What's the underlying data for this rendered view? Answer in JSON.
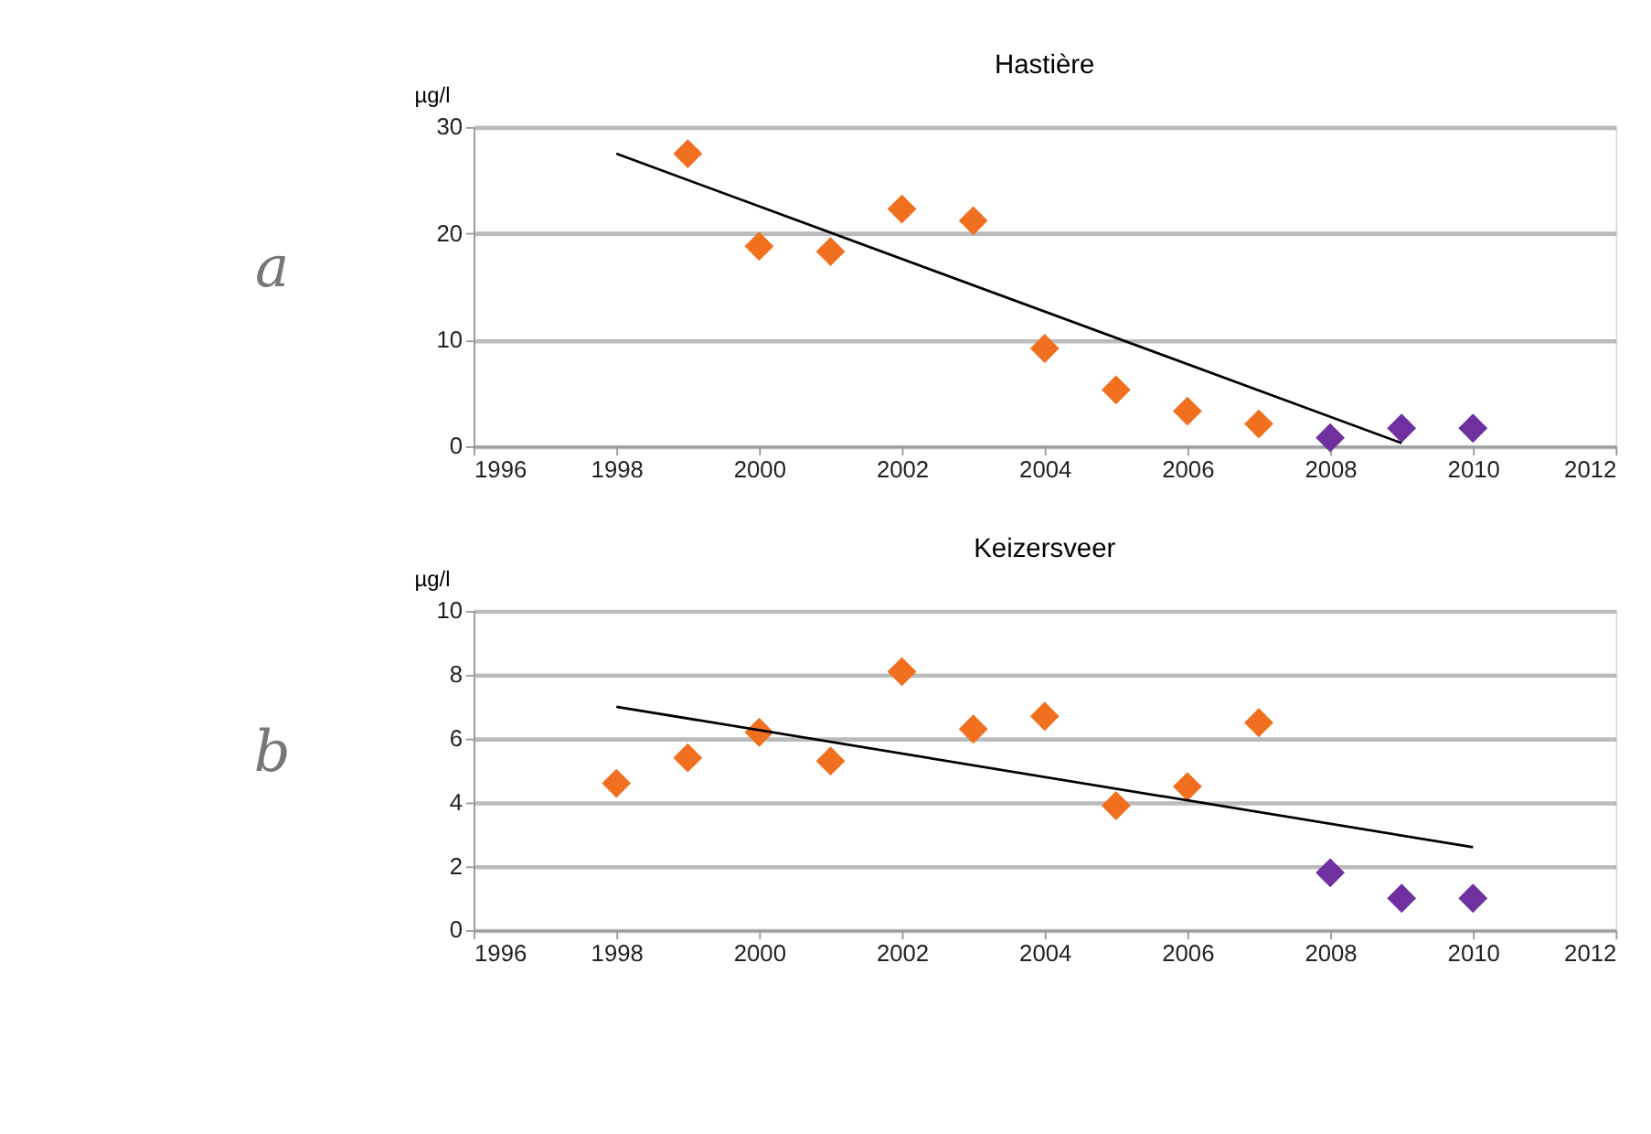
{
  "chart_data": [
    {
      "type": "scatter",
      "title": "Hastière",
      "ylabel": "µg/l",
      "annotations": [
        "a"
      ],
      "xlim": [
        1996,
        2012
      ],
      "xticks": [
        1996,
        1998,
        2000,
        2002,
        2004,
        2006,
        2008,
        2010,
        2012
      ],
      "ylim": [
        0,
        30
      ],
      "yticks": [
        0,
        10,
        20,
        30
      ],
      "grid": "y",
      "marker": "diamond",
      "series": [
        {
          "color": "#f07020",
          "x": [
            1999,
            2000,
            2001,
            2002,
            2003,
            2004,
            2005,
            2006,
            2007
          ],
          "values": [
            27.5,
            18.8,
            18.3,
            22.3,
            21.2,
            9.2,
            5.3,
            3.3,
            2.1
          ]
        },
        {
          "color": "#7030a0",
          "x": [
            2008,
            2009,
            2010
          ],
          "values": [
            0.8,
            1.7,
            1.7
          ]
        },
        {
          "type": "line",
          "color": "#000000",
          "marker": "none",
          "line_style": "solid",
          "x": [
            1998,
            2009
          ],
          "values": [
            27.5,
            0.3
          ]
        }
      ]
    },
    {
      "type": "scatter",
      "title": "Keizersveer",
      "ylabel": "µg/l",
      "annotations": [
        "b"
      ],
      "xlim": [
        1996,
        2012
      ],
      "xticks": [
        1996,
        1998,
        2000,
        2002,
        2004,
        2006,
        2008,
        2010,
        2012
      ],
      "ylim": [
        0,
        10
      ],
      "yticks": [
        0,
        2,
        4,
        6,
        8,
        10
      ],
      "grid": "y",
      "marker": "diamond",
      "series": [
        {
          "color": "#f07020",
          "x": [
            1998,
            1999,
            2000,
            2001,
            2002,
            2003,
            2004,
            2005,
            2006,
            2007
          ],
          "values": [
            4.6,
            5.4,
            6.2,
            5.3,
            8.1,
            6.3,
            6.7,
            3.9,
            4.5,
            6.5
          ]
        },
        {
          "color": "#7030a0",
          "x": [
            2008,
            2009,
            2010
          ],
          "values": [
            1.8,
            1.0,
            1.0
          ]
        },
        {
          "type": "line",
          "color": "#000000",
          "marker": "none",
          "line_style": "solid",
          "x": [
            1998,
            2010
          ],
          "values": [
            7.0,
            2.6
          ]
        }
      ]
    }
  ]
}
